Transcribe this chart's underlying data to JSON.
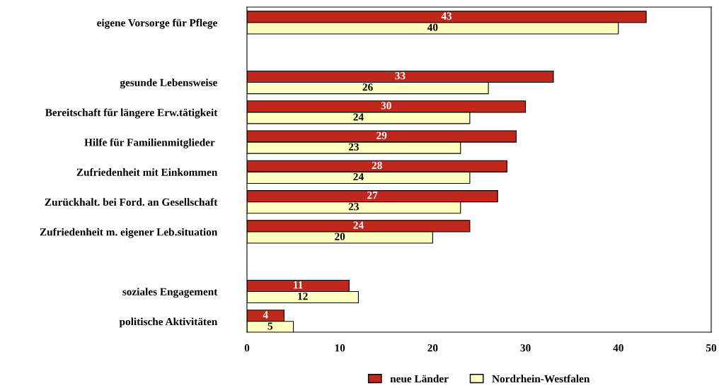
{
  "chart_data": {
    "type": "bar",
    "orientation": "horizontal",
    "categories": [
      "eigene Vorsorge für Pflege",
      null,
      "gesunde Lebensweise",
      "Bereitschaft für längere Erw.tätigkeit",
      "Hilfe für Familienmitglieder ",
      "Zufriedenheit mit Einkommen",
      "Zurückhalt. bei Ford. an Gesellschaft",
      "Zufriedenheit m. eigener Leb.situation",
      null,
      "soziales Engagement",
      "politische Aktivitäten"
    ],
    "series": [
      {
        "name": "neue Länder",
        "color": "#c0281c",
        "values": [
          43,
          null,
          33,
          30,
          29,
          28,
          27,
          24,
          null,
          11,
          4
        ]
      },
      {
        "name": "Nordrhein-Westfalen",
        "color": "#ffffc0",
        "values": [
          40,
          null,
          26,
          24,
          23,
          24,
          23,
          20,
          null,
          12,
          5
        ]
      }
    ],
    "xlim": [
      0,
      50
    ],
    "xticks": [
      0,
      10,
      20,
      30,
      40,
      50
    ],
    "grid": false,
    "legend": "bottom",
    "data_labels": true
  }
}
